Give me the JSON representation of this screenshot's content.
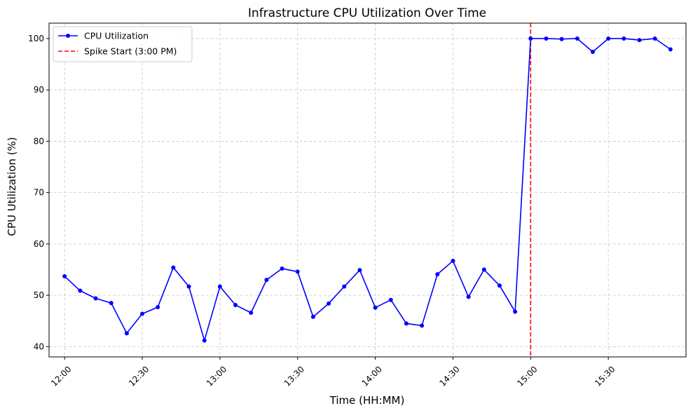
{
  "chart_data": {
    "type": "line",
    "title": "Infrastructure CPU Utilization Over Time",
    "xlabel": "Time (HH:MM)",
    "ylabel": "CPU Utilization (%)",
    "x_tick_labels": [
      "12:00",
      "12:30",
      "13:00",
      "13:30",
      "14:00",
      "14:30",
      "15:00",
      "15:30"
    ],
    "x_ticks": [
      "12:00",
      "12:30",
      "13:00",
      "13:30",
      "14:00",
      "14:30",
      "15:00",
      "15:30"
    ],
    "y_ticks": [
      40,
      50,
      60,
      70,
      80,
      90,
      100
    ],
    "xlim": [
      "11:54",
      "16:00"
    ],
    "ylim": [
      38,
      103
    ],
    "grid": true,
    "legend_position": "top-left",
    "series": [
      {
        "name": "CPU Utilization",
        "color": "#0000ff",
        "marker": "circle",
        "x": [
          "12:00",
          "12:06",
          "12:12",
          "12:18",
          "12:24",
          "12:30",
          "12:36",
          "12:42",
          "12:48",
          "12:54",
          "13:00",
          "13:06",
          "13:12",
          "13:18",
          "13:24",
          "13:30",
          "13:36",
          "13:42",
          "13:48",
          "13:54",
          "14:00",
          "14:06",
          "14:12",
          "14:18",
          "14:24",
          "14:30",
          "14:36",
          "14:42",
          "14:48",
          "14:54",
          "15:00",
          "15:06",
          "15:12",
          "15:18",
          "15:24",
          "15:30",
          "15:36",
          "15:42",
          "15:48",
          "15:54"
        ],
        "values": [
          53.7,
          50.9,
          49.4,
          48.5,
          42.6,
          46.4,
          47.7,
          55.4,
          51.7,
          41.2,
          51.7,
          48.1,
          46.6,
          53.0,
          55.2,
          54.6,
          45.8,
          48.4,
          51.7,
          54.9,
          47.6,
          49.1,
          44.5,
          44.1,
          54.1,
          56.7,
          49.7,
          55.0,
          51.9,
          46.8,
          100.0,
          100.0,
          99.9,
          100.0,
          97.4,
          100.0,
          100.0,
          99.7,
          100.0,
          97.9
        ]
      }
    ],
    "vlines": [
      {
        "name": "Spike Start (3:00 PM)",
        "x": "15:00",
        "color": "#ff0000",
        "style": "dashed"
      }
    ]
  }
}
